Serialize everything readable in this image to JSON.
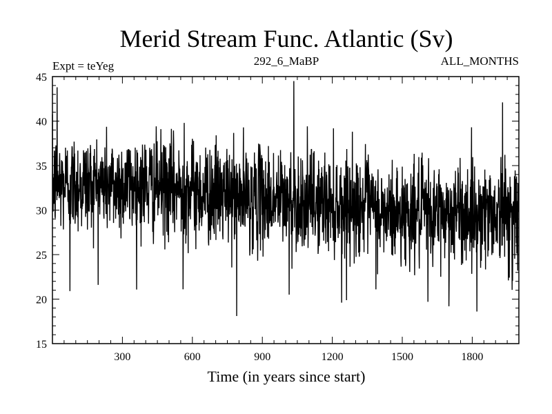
{
  "chart_data": {
    "type": "line",
    "title": "Merid Stream Func. Atlantic (Sv)",
    "subtitle_left": "Expt = teYeg",
    "subtitle_center": "292_6_MaBP",
    "subtitle_right": "ALL_MONTHS",
    "xlabel": "Time (in years since start)",
    "ylabel": "",
    "xlim": [
      0,
      2000
    ],
    "ylim": [
      15,
      45
    ],
    "xticks": [
      300,
      600,
      900,
      1200,
      1500,
      1800
    ],
    "xtick_labels": [
      "300",
      "600",
      "900",
      "1200",
      "1500",
      "1800"
    ],
    "yticks": [
      15,
      20,
      25,
      30,
      35,
      40,
      45
    ],
    "ytick_labels": [
      "15",
      "20",
      "25",
      "30",
      "35",
      "40",
      "45"
    ],
    "grid": false,
    "series": [
      {
        "name": "Merid Stream Func. Atlantic",
        "color": "#000000",
        "n_points": 2000,
        "trend": [
          [
            0,
            33.0
          ],
          [
            400,
            32.8
          ],
          [
            800,
            31.5
          ],
          [
            1200,
            30.8
          ],
          [
            1370,
            30.5
          ],
          [
            1380,
            29.5
          ],
          [
            2000,
            29.8
          ]
        ],
        "noise_std": 2.8,
        "spikes": [
          {
            "x": 20,
            "y": 43.8
          },
          {
            "x": 75,
            "y": 20.9
          },
          {
            "x": 560,
            "y": 21.1
          },
          {
            "x": 565,
            "y": 39.8
          },
          {
            "x": 790,
            "y": 18.1
          },
          {
            "x": 1035,
            "y": 44.5
          },
          {
            "x": 1015,
            "y": 20.5
          },
          {
            "x": 1240,
            "y": 19.6
          },
          {
            "x": 1610,
            "y": 19.7
          },
          {
            "x": 1700,
            "y": 19.2
          },
          {
            "x": 1820,
            "y": 18.6
          },
          {
            "x": 1930,
            "y": 42.1
          },
          {
            "x": 1955,
            "y": 22.1
          }
        ]
      }
    ]
  }
}
